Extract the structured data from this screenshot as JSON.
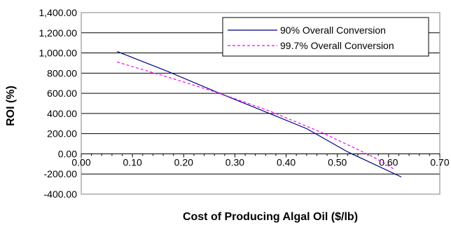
{
  "chart_data": {
    "type": "line",
    "title": "",
    "xlabel": "Cost of Producing Algal Oil ($/lb)",
    "ylabel": "ROI (%)",
    "xlim": [
      0,
      0.7
    ],
    "ylim": [
      -400,
      1400
    ],
    "x_ticks": [
      "0.00",
      "0.10",
      "0.20",
      "0.30",
      "0.40",
      "0.50",
      "0.60",
      "0.70"
    ],
    "y_ticks": [
      "1,400.00",
      "1,200.00",
      "1,000.00",
      "800.00",
      "600.00",
      "400.00",
      "200.00",
      "0.00",
      "-200.00",
      "-400.00"
    ],
    "grid": "horizontal",
    "legend_position": "top-right",
    "series": [
      {
        "name": "90% Overall Conversion",
        "color": "#000080",
        "dash": "solid",
        "x": [
          0.07,
          0.17,
          0.27,
          0.37,
          0.44,
          0.52,
          0.625
        ],
        "y": [
          1015,
          815,
          600,
          395,
          250,
          20,
          -230
        ]
      },
      {
        "name": "99.7% Overall Conversion",
        "color": "#ff00ff",
        "dash": "dashed",
        "x": [
          0.07,
          0.17,
          0.27,
          0.37,
          0.47,
          0.57,
          0.61
        ],
        "y": [
          910,
          760,
          600,
          420,
          210,
          -30,
          -150
        ]
      }
    ]
  }
}
